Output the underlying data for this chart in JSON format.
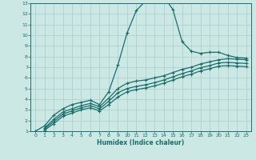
{
  "xlabel": "Humidex (Indice chaleur)",
  "ylabel": "",
  "bg_color": "#cce8e4",
  "grid_color": "#aacccc",
  "line_color": "#1a6e6a",
  "xlim": [
    -0.5,
    23.5
  ],
  "ylim": [
    1,
    13
  ],
  "xticks": [
    0,
    1,
    2,
    3,
    4,
    5,
    6,
    7,
    8,
    9,
    10,
    11,
    12,
    13,
    14,
    15,
    16,
    17,
    18,
    19,
    20,
    21,
    22,
    23
  ],
  "yticks": [
    1,
    2,
    3,
    4,
    5,
    6,
    7,
    8,
    9,
    10,
    11,
    12,
    13
  ],
  "curve1_x": [
    0,
    1,
    2,
    3,
    4,
    5,
    6,
    7,
    8,
    9,
    10,
    11,
    12,
    13,
    14,
    15,
    16,
    17,
    18,
    19,
    20,
    21,
    22,
    23
  ],
  "curve1_y": [
    1.0,
    1.5,
    2.5,
    3.1,
    3.5,
    3.7,
    3.9,
    3.5,
    4.7,
    7.2,
    10.2,
    12.3,
    13.2,
    13.5,
    13.65,
    12.4,
    9.4,
    8.5,
    8.3,
    8.4,
    8.4,
    8.1,
    7.9,
    7.85
  ],
  "curve2_x": [
    1,
    2,
    3,
    4,
    5,
    6,
    7,
    8,
    9,
    10,
    11,
    12,
    13,
    14,
    15,
    16,
    17,
    18,
    19,
    20,
    21,
    22,
    23
  ],
  "curve2_y": [
    1.3,
    2.1,
    2.8,
    3.1,
    3.4,
    3.6,
    3.3,
    4.1,
    5.0,
    5.5,
    5.7,
    5.8,
    6.0,
    6.2,
    6.5,
    6.8,
    7.0,
    7.3,
    7.5,
    7.7,
    7.8,
    7.75,
    7.7
  ],
  "curve3_x": [
    1,
    2,
    3,
    4,
    5,
    6,
    7,
    8,
    9,
    10,
    11,
    12,
    13,
    14,
    15,
    16,
    17,
    18,
    19,
    20,
    21,
    22,
    23
  ],
  "curve3_y": [
    1.2,
    1.9,
    2.6,
    2.9,
    3.2,
    3.4,
    3.1,
    3.8,
    4.6,
    5.0,
    5.2,
    5.35,
    5.55,
    5.8,
    6.1,
    6.4,
    6.65,
    6.95,
    7.15,
    7.4,
    7.45,
    7.4,
    7.35
  ],
  "curve4_x": [
    1,
    2,
    3,
    4,
    5,
    6,
    7,
    8,
    9,
    10,
    11,
    12,
    13,
    14,
    15,
    16,
    17,
    18,
    19,
    20,
    21,
    22,
    23
  ],
  "curve4_y": [
    1.1,
    1.7,
    2.4,
    2.7,
    3.0,
    3.2,
    2.9,
    3.5,
    4.2,
    4.7,
    4.9,
    5.05,
    5.25,
    5.5,
    5.8,
    6.1,
    6.35,
    6.65,
    6.85,
    7.1,
    7.15,
    7.1,
    7.05
  ]
}
